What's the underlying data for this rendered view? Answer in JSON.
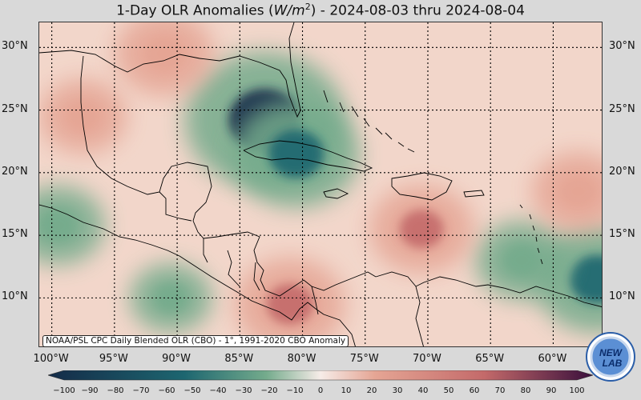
{
  "title": {
    "prefix": "1-Day OLR Anomalies (",
    "unit_main": "W/m",
    "unit_sup": "2",
    "suffix": ") - 2024-08-03 thru 2024-08-04"
  },
  "map": {
    "lon_range": [
      -101,
      -56
    ],
    "lat_range": [
      6,
      32
    ],
    "lat_gridlines": [
      10,
      15,
      20,
      25,
      30
    ],
    "lon_gridlines": [
      -100,
      -95,
      -90,
      -85,
      -80,
      -75,
      -70,
      -65,
      -60
    ],
    "lat_labels_left": [
      "10°N",
      "15°N",
      "20°N",
      "25°N",
      "30°N"
    ],
    "lat_labels_right": [
      "10°N",
      "15°N",
      "20°N",
      "25°N",
      "30°N"
    ],
    "lon_labels": [
      "100°W",
      "95°W",
      "90°W",
      "85°W",
      "80°W",
      "75°W",
      "70°W",
      "65°W",
      "60°W"
    ],
    "anomaly_features": [
      {
        "type": "negative",
        "lon": -83.0,
        "lat": 24.2,
        "value": -100
      },
      {
        "type": "negative",
        "lon": -80.5,
        "lat": 21.5,
        "value": -70
      },
      {
        "type": "negative",
        "lon": -56.5,
        "lat": 11.5,
        "value": -70
      },
      {
        "type": "negative",
        "lon": -99.5,
        "lat": 15.8,
        "value": -40
      },
      {
        "type": "negative",
        "lon": -62.5,
        "lat": 13.0,
        "value": -40
      },
      {
        "type": "negative",
        "lon": -90.5,
        "lat": 10.0,
        "value": -30
      },
      {
        "type": "positive",
        "lon": -81.0,
        "lat": 9.5,
        "value": 55
      },
      {
        "type": "positive",
        "lon": -91.0,
        "lat": 29.5,
        "value": 45
      },
      {
        "type": "positive",
        "lon": -70.5,
        "lat": 15.5,
        "value": 50
      },
      {
        "type": "positive",
        "lon": -58.0,
        "lat": 18.5,
        "value": 40
      },
      {
        "type": "positive",
        "lon": -97.5,
        "lat": 24.5,
        "value": 35
      }
    ]
  },
  "credit": "NOAA/PSL CPC Daily Blended OLR (CBO) - 1°, 1991-2020 CBO Anomaly",
  "logo": {
    "text_top": "NEW",
    "text_bottom": "LAB"
  },
  "colorbar": {
    "ticks": [
      "−100",
      "−90",
      "−80",
      "−70",
      "−60",
      "−50",
      "−40",
      "−30",
      "−20",
      "−10",
      "0",
      "10",
      "20",
      "30",
      "40",
      "50",
      "60",
      "70",
      "80",
      "90",
      "100"
    ],
    "colors": {
      "neg_end": "#142b48",
      "neg_mid": "#1d6670",
      "neg_light": "#74ab8c",
      "neutral": "#f6ece8",
      "pos_light": "#e5a594",
      "pos_mid": "#c46a6a",
      "pos_end": "#3a0f3c"
    }
  }
}
